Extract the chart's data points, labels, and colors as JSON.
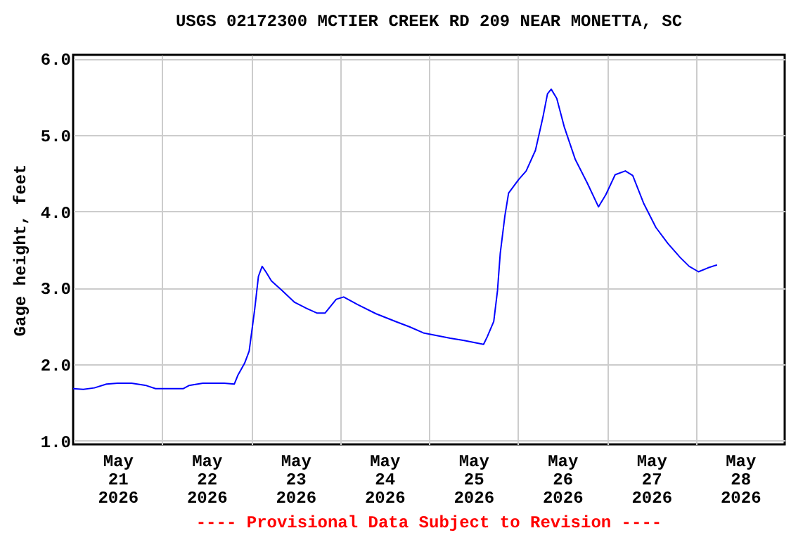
{
  "chart_data": {
    "type": "line",
    "title": "USGS 02172300 MCTIER CREEK RD 209 NEAR MONETTA, SC",
    "ylabel": "Gage height, feet",
    "annotations": [
      "---- Provisional Data Subject to Revision ----"
    ],
    "x": [
      "2026-05-21T00:00",
      "2026-05-21T02:45",
      "2026-05-21T05:45",
      "2026-05-21T09:00",
      "2026-05-21T12:00",
      "2026-05-21T15:45",
      "2026-05-21T19:45",
      "2026-05-21T22:15",
      "2026-05-22T05:45",
      "2026-05-22T07:15",
      "2026-05-22T11:00",
      "2026-05-22T16:45",
      "2026-05-22T19:30",
      "2026-05-22T20:30",
      "2026-05-22T22:15",
      "2026-05-22T23:30",
      "2026-05-23T01:00",
      "2026-05-23T02:00",
      "2026-05-23T03:00",
      "2026-05-23T04:00",
      "2026-05-23T05:30",
      "2026-05-23T08:30",
      "2026-05-23T11:45",
      "2026-05-23T15:00",
      "2026-05-23T17:45",
      "2026-05-23T20:00",
      "2026-05-23T23:00",
      "2026-05-24T01:00",
      "2026-05-24T04:45",
      "2026-05-24T09:45",
      "2026-05-24T15:30",
      "2026-05-24T18:45",
      "2026-05-24T22:30",
      "2026-05-25T05:45",
      "2026-05-25T09:30",
      "2026-05-25T14:45",
      "2026-05-25T15:45",
      "2026-05-25T17:30",
      "2026-05-25T18:30",
      "2026-05-25T19:15",
      "2026-05-25T20:30",
      "2026-05-25T21:30",
      "2026-05-26T00:15",
      "2026-05-26T02:15",
      "2026-05-26T04:45",
      "2026-05-26T06:45",
      "2026-05-26T08:00",
      "2026-05-26T09:00",
      "2026-05-26T10:30",
      "2026-05-26T12:30",
      "2026-05-26T15:30",
      "2026-05-26T18:45",
      "2026-05-26T21:45",
      "2026-05-26T23:45",
      "2026-05-27T02:15",
      "2026-05-27T05:00",
      "2026-05-27T07:00",
      "2026-05-27T10:00",
      "2026-05-27T13:15",
      "2026-05-27T16:30",
      "2026-05-27T19:45",
      "2026-05-27T22:15",
      "2026-05-28T00:45",
      "2026-05-28T03:15",
      "2026-05-28T05:45"
    ],
    "series": [
      {
        "color": "#0000ff",
        "values": [
          1.68,
          1.67,
          1.69,
          1.74,
          1.75,
          1.75,
          1.72,
          1.68,
          1.68,
          1.72,
          1.75,
          1.75,
          1.74,
          1.86,
          2.01,
          2.17,
          2.72,
          3.15,
          3.28,
          3.21,
          3.09,
          2.96,
          2.81,
          2.73,
          2.67,
          2.67,
          2.85,
          2.88,
          2.78,
          2.66,
          2.55,
          2.49,
          2.41,
          2.34,
          2.31,
          2.26,
          2.36,
          2.56,
          2.96,
          3.45,
          3.94,
          4.24,
          4.42,
          4.53,
          4.8,
          5.23,
          5.54,
          5.6,
          5.48,
          5.11,
          4.68,
          4.37,
          4.06,
          4.22,
          4.48,
          4.53,
          4.47,
          4.1,
          3.79,
          3.58,
          3.4,
          3.28,
          3.21,
          3.26,
          3.3
        ]
      }
    ],
    "xlim": [
      "2026-05-21T00:00",
      "2026-05-29T00:00"
    ],
    "xticks": [
      {
        "value": "2026-05-21T12:00",
        "label": "May 21 2026"
      },
      {
        "value": "2026-05-22T00:00",
        "label": null
      },
      {
        "value": "2026-05-22T12:00",
        "label": "May 22 2026"
      },
      {
        "value": "2026-05-23T00:00",
        "label": null
      },
      {
        "value": "2026-05-23T12:00",
        "label": "May 23 2026"
      },
      {
        "value": "2026-05-24T00:00",
        "label": null
      },
      {
        "value": "2026-05-24T12:00",
        "label": "May 24 2026"
      },
      {
        "value": "2026-05-25T00:00",
        "label": null
      },
      {
        "value": "2026-05-25T12:00",
        "label": "May 25 2026"
      },
      {
        "value": "2026-05-26T00:00",
        "label": null
      },
      {
        "value": "2026-05-26T12:00",
        "label": "May 26 2026"
      },
      {
        "value": "2026-05-27T00:00",
        "label": null
      },
      {
        "value": "2026-05-27T12:00",
        "label": "May 27 2026"
      },
      {
        "value": "2026-05-28T00:00",
        "label": null
      },
      {
        "value": "2026-05-28T12:00",
        "label": "May 28 2026"
      }
    ],
    "ylim": [
      0.95,
      6.05
    ],
    "yticks": [
      {
        "value": 1,
        "label": "1.0"
      },
      {
        "value": 2,
        "label": "2.0"
      },
      {
        "value": 3,
        "label": "3.0"
      },
      {
        "value": 4,
        "label": "4.0"
      },
      {
        "value": 5,
        "label": "5.0"
      },
      {
        "value": 6,
        "label": "6.0"
      }
    ],
    "grid": true
  }
}
